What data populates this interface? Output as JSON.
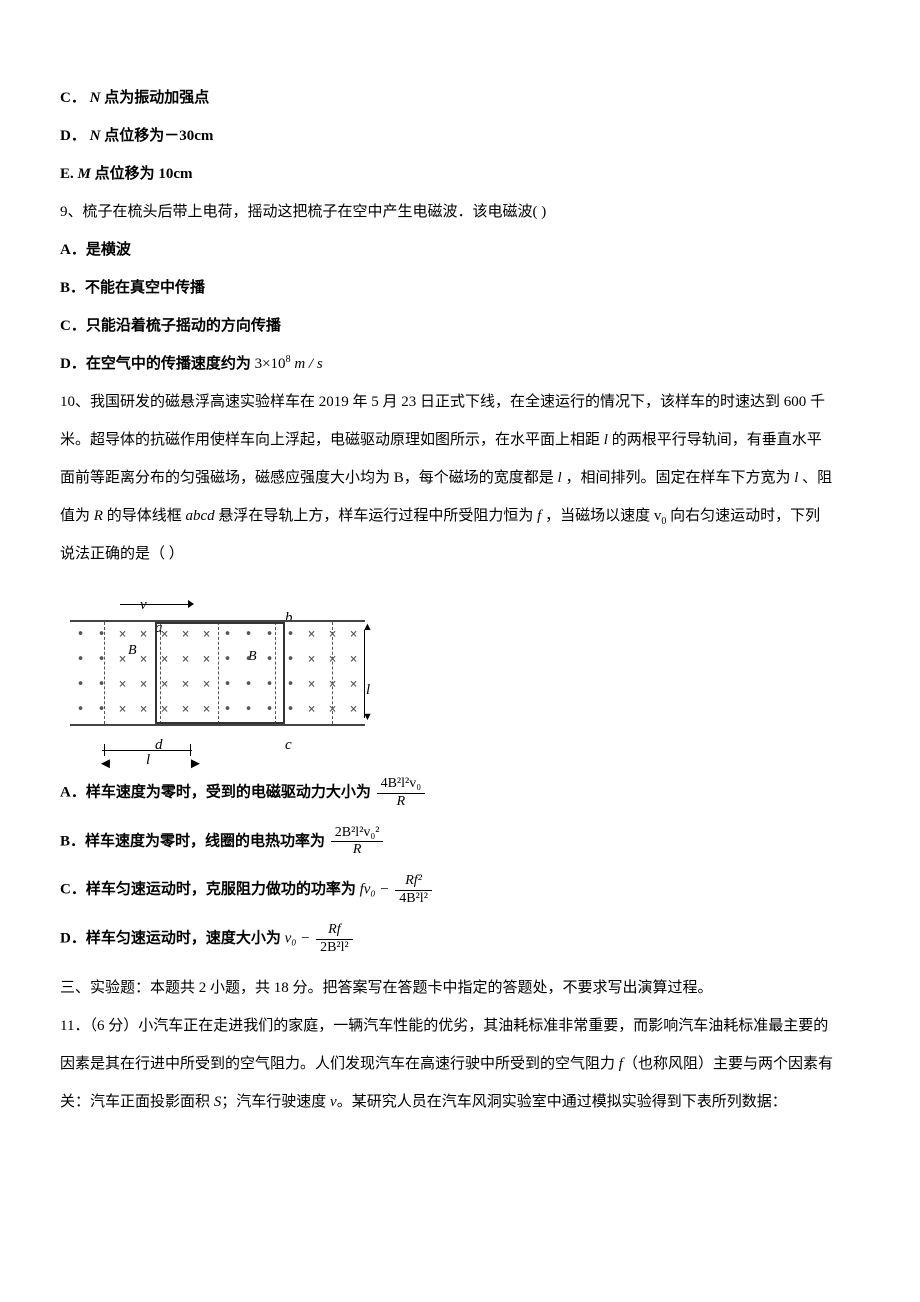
{
  "q8": {
    "optC": "C．",
    "optC_text1": "N",
    "optC_text2": " 点为振动加强点",
    "optD": "D．",
    "optD_text1": "N",
    "optD_text2": " 点位移为－30cm",
    "optE": "E.",
    "optE_text1": "M",
    "optE_text2": " 点位移为 10cm"
  },
  "q9": {
    "stem": "9、梳子在梳头后带上电荷，摇动这把梳子在空中产生电磁波．该电磁波(       )",
    "optA": "A．是横波",
    "optB": "B．不能在真空中传播",
    "optC": "C．只能沿着梳子摇动的方向传播",
    "optD_pre": "D．在空气中的传播速度约为",
    "optD_val": "3×10",
    "optD_sup": "8",
    "optD_unit": " m / s"
  },
  "q10": {
    "stem1": "10、我国研发的磁悬浮高速实验样车在 2019 年 5 月 23 日正式下线，在全速运行的情况下，该样车的时速达到 600 千",
    "stem2": "米。超导体的抗磁作用使样车向上浮起，电磁驱动原理如图所示，在水平面上相距 ",
    "stem2_l": "l",
    "stem2b": " 的两根平行导轨间，有垂直水平",
    "stem3": "面前等距离分布的匀强磁场，磁感应强度大小均为 B，每个磁场的宽度都是 ",
    "stem3_l": "l",
    "stem3b": " ，相间排列。固定在样车下方宽为 ",
    "stem3_l2": "l",
    "stem3c": " 、阻",
    "stem4a": "值为 ",
    "stem4_R": "R",
    "stem4b": " 的导体线框 ",
    "stem4_abcd": "abcd",
    "stem4c": " 悬浮在导轨上方，样车运行过程中所受阻力恒为 ",
    "stem4_f": "f",
    "stem4d": " ，当磁场以速度 v",
    "stem4_sub": "0",
    "stem4e": " 向右匀速运动时，下列",
    "stem5": "说法正确的是（     ）",
    "fig": {
      "v": "v",
      "a": "a",
      "b": "b",
      "c": "c",
      "d": "d",
      "B": "B",
      "l": "l",
      "dashed_positions": [
        44,
        100,
        158,
        215,
        272
      ],
      "dot": "•",
      "cross": "×"
    },
    "optA_pre": "A．样车速度为零时，受到的电磁驱动力大小为",
    "optA_num": "4B²l²v₀",
    "optA_den": "R",
    "optB_pre": "B．样车速度为零时，线圈的电热功率为",
    "optB_num": "2B²l²v₀²",
    "optB_den": "R",
    "optC_pre": "C．样车匀速运动时，克服阻力做功的功率为",
    "optC_t1": "fv₀ − ",
    "optC_num": "Rf²",
    "optC_den": "4B²l²",
    "optD_pre": "D．样车匀速运动时，速度大小为",
    "optD_t1": "v₀ − ",
    "optD_num": "Rf",
    "optD_den": "2B²l²"
  },
  "section3": {
    "title": "三、实验题：本题共 2 小题，共 18 分。把答案写在答题卡中指定的答题处，不要求写出演算过程。"
  },
  "q11": {
    "line1": "11．（6 分）小汽车正在走进我们的家庭，一辆汽车性能的优劣，其油耗标准非常重要，而影响汽车油耗标准最主要的",
    "line2a": "因素是其在行进中所受到的空气阻力。人们发现汽车在高速行驶中所受到的空气阻力 ",
    "line2_f": "f",
    "line2b": "（也称风阻）主要与两个因素有",
    "line3a": "关：汽车正面投影面积 ",
    "line3_S": "S",
    "line3b": "；汽车行驶速度 ",
    "line3_v": "v",
    "line3c": "。某研究人员在汽车风洞实验室中通过模拟实验得到下表所列数据："
  }
}
